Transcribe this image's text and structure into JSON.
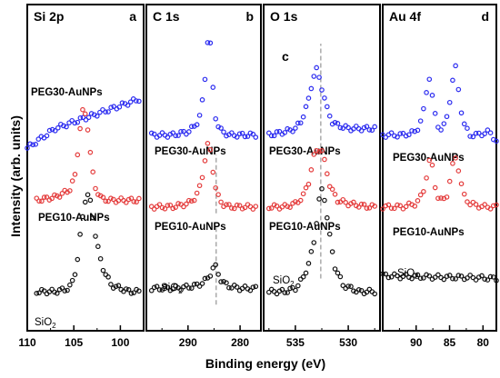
{
  "chart_data": {
    "type": "scatter",
    "ylabel": "Intensity (arb. units)",
    "xlabel": "Binding energy (eV)",
    "panels": [
      {
        "title": "Si 2p",
        "letter": "a",
        "xlim": [
          110,
          97.5
        ],
        "xticks": [
          110,
          105,
          100
        ],
        "series": [
          {
            "name": "PEG30-AuNPs",
            "color": "#2b2bf0",
            "x": [
              110,
              109,
              108,
              107,
              106,
              105,
              104,
              103,
              102,
              101,
              100,
              99,
              98
            ],
            "y": [
              28,
              29,
              30,
              31,
              31.5,
              32,
              32.5,
              33,
              33.5,
              34,
              34.5,
              35,
              35.5
            ]
          },
          {
            "name": "PEG10-AuNPs",
            "color": "#e43b3b",
            "x": [
              109,
              107,
              105.5,
              104.8,
              104.4,
              104,
              103.6,
              103.2,
              102.8,
              102,
              101,
              99,
              98
            ],
            "y": [
              20,
              20.5,
              21.5,
              24,
              30.5,
              34,
              32.5,
              27,
              22.2,
              20.2,
              20,
              20,
              20
            ]
          },
          {
            "name": "SiO2",
            "label_sub": "2",
            "label_main": "SiO",
            "color": "#111111",
            "x": [
              109,
              107,
              105.5,
              105,
              104.6,
              104.2,
              103.8,
              103.4,
              103,
              102.6,
              102,
              101,
              99,
              98
            ],
            "y": [
              6,
              6,
              6.5,
              8,
              11,
              16,
              20,
              21,
              18,
              14,
              10,
              7,
              6,
              6
            ]
          }
        ]
      },
      {
        "title": "C 1s",
        "letter": "b",
        "xlim": [
          298,
          276
        ],
        "xticks": [
          290,
          280
        ],
        "series": [
          {
            "name": "PEG30-AuNPs",
            "color": "#2b2bf0",
            "x": [
              297,
              293,
              290,
              288.5,
              287.5,
              286.8,
              286.3,
              286,
              285.6,
              285.2,
              284.6,
              283.5,
              282,
              280,
              277
            ],
            "y": [
              30,
              30,
              30.5,
              31.5,
              33.5,
              38,
              44,
              46,
              43,
              37,
              32,
              30.5,
              30,
              30,
              30
            ]
          },
          {
            "name": "PEG10-AuNPs",
            "color": "#e43b3b",
            "x": [
              297,
              293,
              290,
              288.5,
              287.5,
              286.9,
              286.4,
              286,
              285.6,
              285.1,
              284.5,
              283.5,
              282,
              280,
              277
            ],
            "y": [
              19,
              19,
              19.5,
              20.5,
              22.5,
              25.5,
              28,
              29,
              27,
              24,
              21,
              19.5,
              19,
              19,
              19
            ]
          },
          {
            "name": "SiO2",
            "color": "#111111",
            "x": [
              297,
              293,
              290,
              288,
              287,
              286,
              285.3,
              284.8,
              284.3,
              283.5,
              282,
              280,
              277
            ],
            "y": [
              6.5,
              6.5,
              6.7,
              7,
              7.5,
              8.2,
              9.5,
              10,
              9,
              7.5,
              6.8,
              6.5,
              6.5
            ]
          }
        ]
      },
      {
        "title": "O 1s",
        "letter": "c",
        "xlim": [
          538,
          527
        ],
        "xticks": [
          535,
          530
        ],
        "series": [
          {
            "name": "PEG30-AuNPs",
            "color": "#2b2bf0",
            "x": [
              537.5,
              536,
              535,
              534.5,
              533.8,
              533.3,
              533,
              532.7,
              532.3,
              532,
              531.5,
              531,
              530,
              528,
              527.5
            ],
            "y": [
              30,
              30.5,
              31,
              32,
              35,
              39,
              40,
              38.5,
              36,
              34,
              32,
              31.5,
              31,
              31,
              31
            ]
          },
          {
            "name": "PEG10-AuNPs",
            "color": "#e43b3b",
            "x": [
              537.5,
              536,
              535,
              534.3,
              533.7,
              533.3,
              532.9,
              532.5,
              532.1,
              531.7,
              531,
              530,
              528,
              527.5
            ],
            "y": [
              19,
              19,
              19.5,
              20.5,
              23,
              26.5,
              28,
              27.5,
              25,
              22,
              20,
              19.5,
              19,
              19
            ]
          },
          {
            "name": "SiO2",
            "color": "#111111",
            "x": [
              537.5,
              536,
              535,
              534.3,
              533.8,
              533.3,
              532.9,
              532.6,
              532.2,
              531.8,
              531.3,
              530.5,
              529,
              528,
              527.5
            ],
            "y": [
              6,
              6,
              6.5,
              8,
              10,
              13,
              18,
              22,
              20,
              15,
              10,
              7,
              6,
              6,
              6
            ]
          }
        ]
      },
      {
        "title": "Au 4f",
        "letter": "d",
        "xlim": [
          95,
          78
        ],
        "xticks": [
          90,
          85,
          80
        ],
        "series": [
          {
            "name": "PEG30-AuNPs",
            "color": "#2b2bf0",
            "x": [
              95,
              92,
              90,
              89,
              88.4,
              88,
              87.6,
              87,
              86.5,
              86,
              85.3,
              84.6,
              84.2,
              83.8,
              83,
              82,
              81,
              79,
              78
            ],
            "y": [
              30,
              30,
              30.5,
              33,
              37,
              39,
              36,
              32,
              31,
              31,
              33,
              38,
              41,
              38,
              32,
              30,
              30,
              30.5,
              29
            ]
          },
          {
            "name": "PEG10-AuNPs",
            "color": "#e43b3b",
            "x": [
              95,
              92,
              90,
              89,
              88.4,
              88,
              87.5,
              87,
              86.5,
              86,
              85.3,
              84.6,
              84.2,
              83.7,
              83,
              82,
              80,
              78
            ],
            "y": [
              19,
              19,
              19.5,
              21,
              24,
              26,
              25,
              21,
              20,
              20,
              21,
              25,
              27,
              25,
              21,
              19.5,
              19,
              19
            ]
          },
          {
            "name": "SiO2",
            "color": "#111111",
            "x": [
              95,
              92,
              89,
              86,
              83,
              80,
              78
            ],
            "y": [
              8.5,
              8.3,
              8.3,
              8.2,
              8.2,
              8.1,
              8
            ]
          }
        ]
      }
    ],
    "series_labels": [
      "PEG30-AuNPs",
      "PEG10-AuNPs",
      "SiO"
    ],
    "sub_2": "2",
    "ylim": [
      0,
      50
    ]
  }
}
